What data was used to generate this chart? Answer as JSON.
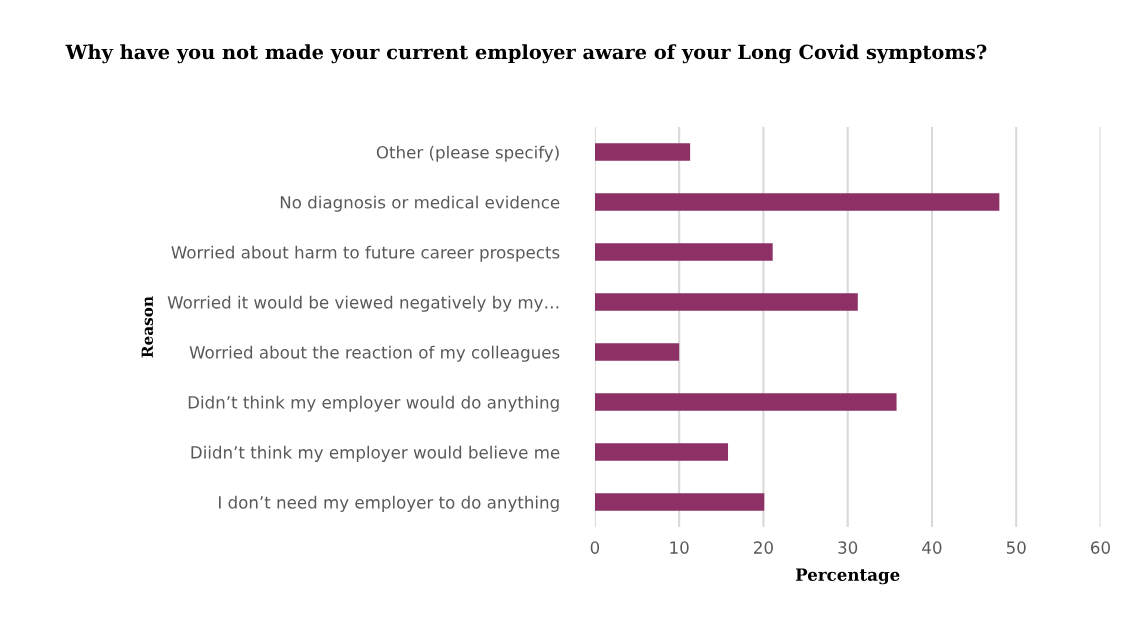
{
  "chart_data": {
    "type": "bar",
    "orientation": "horizontal",
    "title": "Why have you not made your current employer aware of your Long Covid symptoms?",
    "xlabel": "Percentage",
    "ylabel": "Reason",
    "categories": [
      "Other (please specify)",
      "No diagnosis or medical evidence",
      "Worried about harm to future career prospects",
      "Worried it would be viewed negatively by my…",
      "Worried about the reaction of my colleagues",
      "Didn’t think my employer would do anything",
      "Diidn’t think my employer would believe me",
      "I don’t need my employer to do anything"
    ],
    "values": [
      11.3,
      48.0,
      21.1,
      31.2,
      10.0,
      35.8,
      15.8,
      20.1
    ],
    "color": "#8c3066",
    "xlim": [
      0,
      60
    ],
    "xticks": [
      0,
      10,
      20,
      30,
      40,
      50,
      60
    ],
    "grid": "x",
    "legend": false
  }
}
